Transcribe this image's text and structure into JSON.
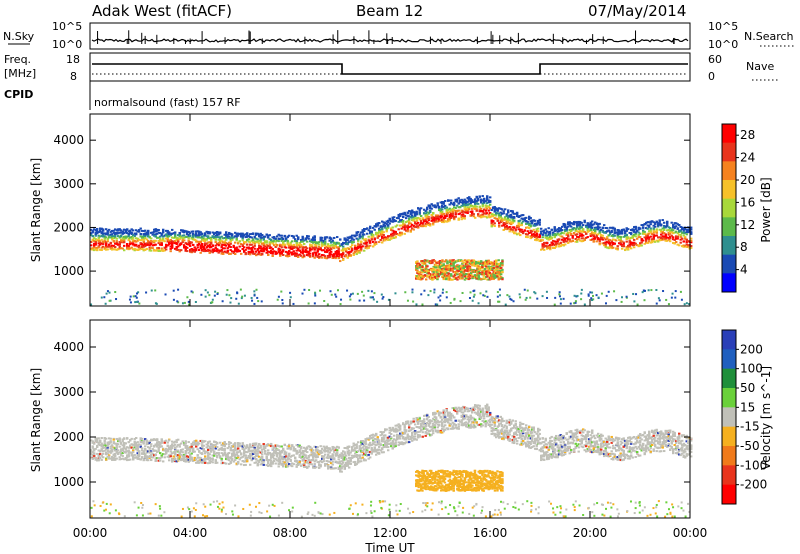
{
  "header": {
    "station": "Adak West (fitACF)",
    "beam": "Beam 12",
    "date": "07/May/2014"
  },
  "panels": {
    "nsky": {
      "label": "N.Sky",
      "right_label": "N.Search",
      "ticks": [
        "10^5",
        "10^0"
      ]
    },
    "freq": {
      "label_line1": "Freq.",
      "label_line2": "[MHz]",
      "left_ticks": [
        "18",
        "8"
      ],
      "right_ticks": [
        "60",
        "0"
      ],
      "right_label": "Nave"
    },
    "cpid": {
      "label": "CPID",
      "program": "normalsound (fast) 157 RF"
    }
  },
  "chart_data": [
    {
      "type": "heatmap",
      "name": "power",
      "ylabel": "Slant Range [km]",
      "y_ticks": [
        1000,
        2000,
        3000,
        4000
      ],
      "ylim": [
        200,
        4600
      ],
      "colorbar_label": "Power [dB]",
      "colorbar_ticks": [
        4,
        8,
        12,
        16,
        20,
        24,
        28
      ],
      "colorbar_range": [
        0,
        30
      ],
      "colors": [
        "#0000ff",
        "#1a4ab4",
        "#2f8f8f",
        "#5cba4a",
        "#a8d83a",
        "#f6c12a",
        "#f5821f",
        "#e8341c",
        "#ff0000"
      ]
    },
    {
      "type": "heatmap",
      "name": "velocity",
      "ylabel": "Slant Range [km]",
      "y_ticks": [
        1000,
        2000,
        3000,
        4000
      ],
      "ylim": [
        200,
        4600
      ],
      "colorbar_label": "Velocity [m s^-1]",
      "colorbar_ticks": [
        200,
        100,
        50,
        15,
        -15,
        -50,
        -100,
        -200
      ],
      "colors": [
        "#2a3fb8",
        "#1f5fbf",
        "#1f8f3a",
        "#6ad13a",
        "#c0c0b8",
        "#f5b01f",
        "#f07a1a",
        "#e8341c",
        "#ff0000"
      ]
    }
  ],
  "x_axis": {
    "label": "Time UT",
    "ticks": [
      "00:00",
      "04:00",
      "08:00",
      "12:00",
      "16:00",
      "20:00",
      "00:00"
    ]
  }
}
